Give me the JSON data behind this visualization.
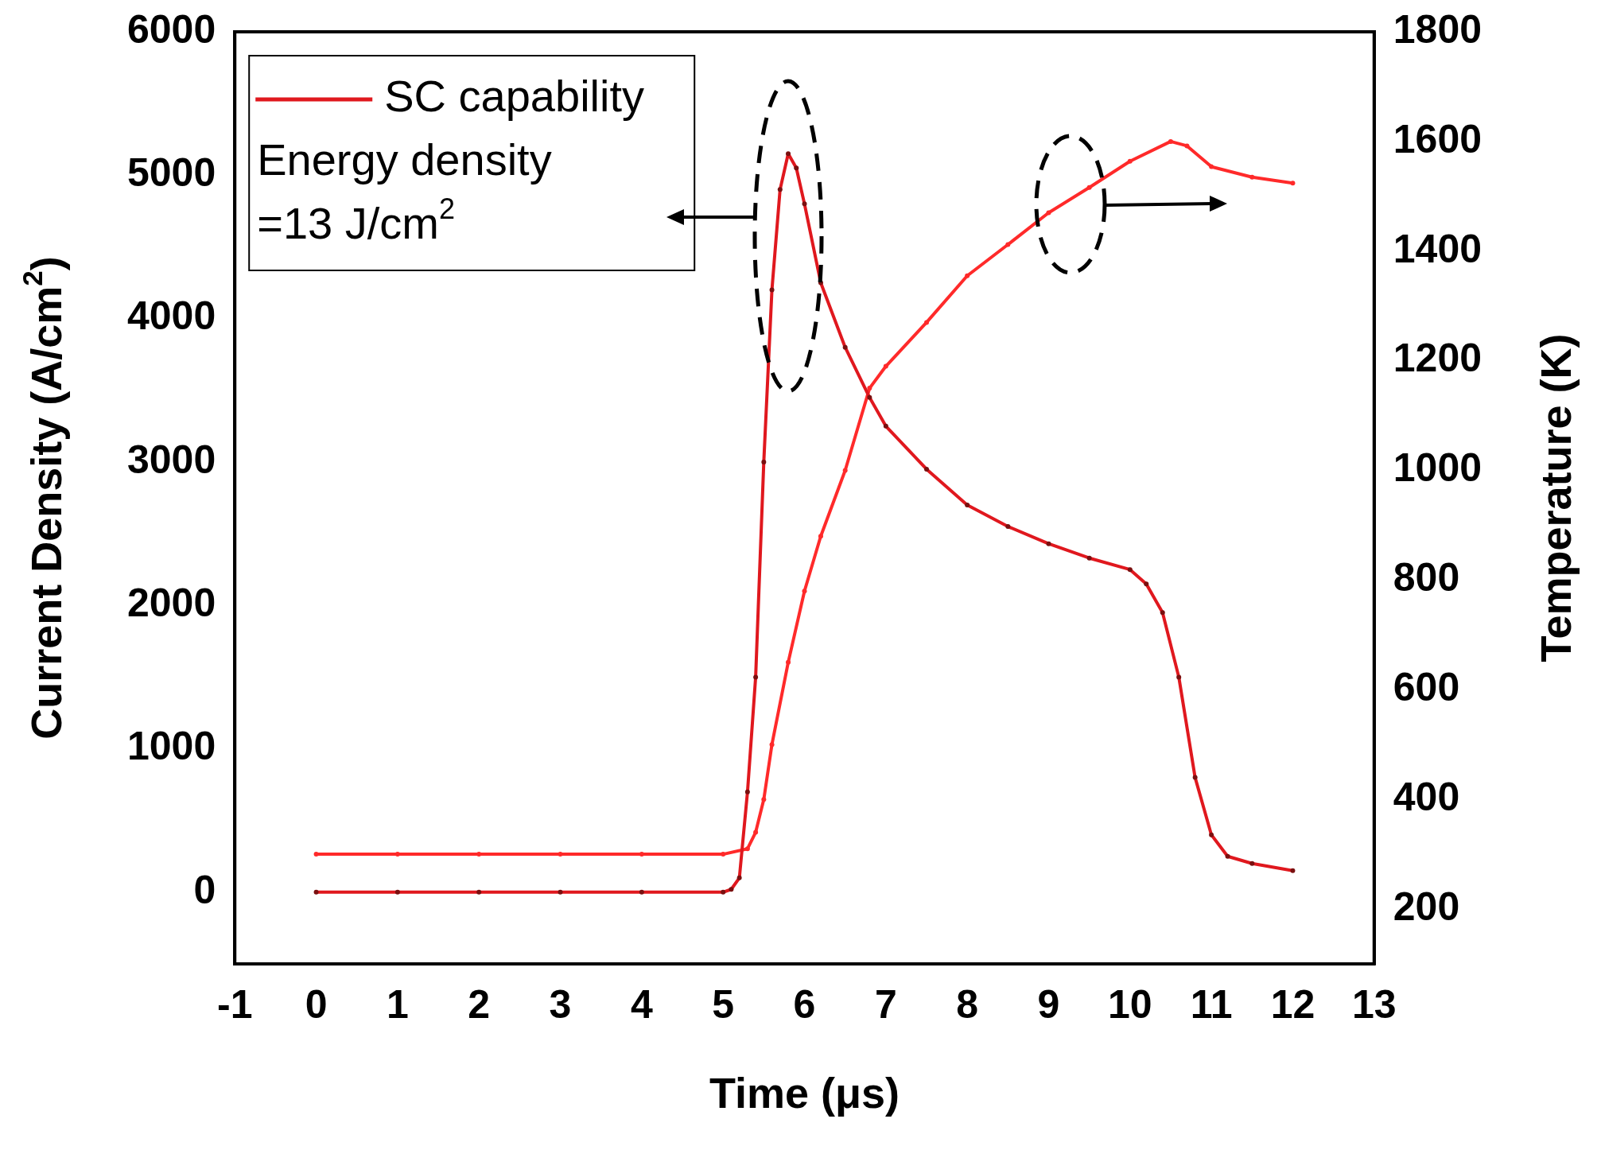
{
  "chart_data": {
    "type": "line",
    "xlabel": "Time (μs)",
    "ylabel": "Current Density (A/cm$^{2}$)",
    "y2label": "Temperature (K)",
    "xlim": [
      -1,
      13
    ],
    "xticks": [
      -1,
      0,
      1,
      2,
      3,
      4,
      5,
      6,
      7,
      8,
      9,
      10,
      11,
      12,
      13
    ],
    "ylim": [
      -500,
      6000
    ],
    "yticks": [
      0,
      1000,
      2000,
      3000,
      4000,
      5000,
      6000
    ],
    "y2lim": [
      100,
      1800
    ],
    "y2ticks": [
      200,
      400,
      600,
      800,
      1000,
      1200,
      1400,
      1600,
      1800
    ],
    "grid": false,
    "legend": "top left",
    "marker": "circle",
    "annotations": [
      "Energy density",
      "=13 J/cm$^{2}$"
    ],
    "series": [
      {
        "name": "SC capability",
        "color": "#e0181e",
        "x": [
          0,
          1,
          2,
          3,
          4,
          5,
          5.1,
          5.2,
          5.3,
          5.4,
          5.5,
          5.6,
          5.7,
          5.8,
          5.9,
          6,
          6.2,
          6.5,
          6.8,
          7,
          7.5,
          8,
          8.5,
          9,
          9.5,
          10,
          10.2,
          10.4,
          10.6,
          10.8,
          11,
          11.2,
          11.5,
          12
        ],
        "values": [
          0,
          0,
          0,
          0,
          0,
          0,
          20,
          100,
          700,
          1500,
          3000,
          4200,
          4900,
          5150,
          5050,
          4800,
          4250,
          3800,
          3450,
          3250,
          2950,
          2700,
          2550,
          2430,
          2330,
          2250,
          2150,
          1950,
          1500,
          800,
          400,
          250,
          200,
          150
        ]
      },
      {
        "color": "#ff2a2a",
        "axis": "y2",
        "x": [
          0,
          1,
          2,
          3,
          4,
          5,
          5.3,
          5.4,
          5.5,
          5.6,
          5.8,
          6,
          6.2,
          6.5,
          6.8,
          7,
          7.5,
          8,
          8.5,
          9,
          9.5,
          10,
          10.5,
          10.7,
          11,
          11.5,
          12
        ],
        "values": [
          300,
          300,
          300,
          300,
          300,
          300,
          310,
          340,
          400,
          500,
          650,
          780,
          880,
          1000,
          1150,
          1190,
          1270,
          1355,
          1412,
          1470,
          1516,
          1564,
          1600,
          1592,
          1554,
          1535,
          1524
        ]
      }
    ]
  }
}
